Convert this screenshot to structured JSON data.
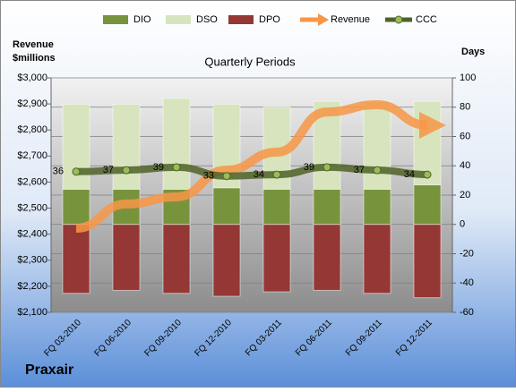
{
  "chart_data": {
    "type": "combo",
    "title": "Quarterly Periods",
    "company": "Praxair",
    "y_label": [
      "Revenue",
      "$millions"
    ],
    "y2_label": "Days",
    "categories": [
      "FQ 03-2010",
      "FQ 06-2010",
      "FQ 09-2010",
      "FQ 12-2010",
      "FQ 03-2011",
      "FQ 06-2011",
      "FQ 09-2011",
      "FQ 12-2011"
    ],
    "ylim": [
      2100,
      3000
    ],
    "yticks": [
      {
        "value": 2100,
        "label": "$2,100"
      },
      {
        "value": 2200,
        "label": "$2,200"
      },
      {
        "value": 2300,
        "label": "$2,300"
      },
      {
        "value": 2400,
        "label": "$2,400"
      },
      {
        "value": 2500,
        "label": "$2,500"
      },
      {
        "value": 2600,
        "label": "$2,600"
      },
      {
        "value": 2700,
        "label": "$2,700"
      },
      {
        "value": 2800,
        "label": "$2,800"
      },
      {
        "value": 2900,
        "label": "$2,900"
      },
      {
        "value": 3000,
        "label": "$3,000"
      }
    ],
    "y2lim": [
      -60,
      100
    ],
    "y2ticks": [
      -60,
      -40,
      -20,
      0,
      20,
      40,
      60,
      80,
      100
    ],
    "grid": true,
    "legend": "top",
    "series": [
      {
        "name": "DIO",
        "type": "bar",
        "axis": "y2",
        "color": "#77933c",
        "values": [
          24,
          24,
          24,
          25,
          24,
          24,
          24,
          27
        ]
      },
      {
        "name": "DSO",
        "type": "bar",
        "axis": "y2",
        "color": "#d7e4bd",
        "values": [
          58,
          58,
          62,
          57,
          56,
          60,
          60,
          57
        ]
      },
      {
        "name": "DPO",
        "type": "bar",
        "axis": "y2",
        "color": "#953735",
        "values": [
          -47,
          -45,
          -47,
          -49,
          -46,
          -45,
          -47,
          -50
        ]
      },
      {
        "name": "Revenue",
        "type": "arrow",
        "axis": "y",
        "color": "#f79646",
        "values": [
          2423,
          2516,
          2543,
          2646,
          2715,
          2869,
          2897,
          2818
        ]
      },
      {
        "name": "CCC",
        "type": "line",
        "axis": "y2",
        "color": "#4f6228",
        "values": [
          36,
          37,
          39,
          33,
          34,
          39,
          37,
          34
        ],
        "data_labels": true
      }
    ]
  }
}
